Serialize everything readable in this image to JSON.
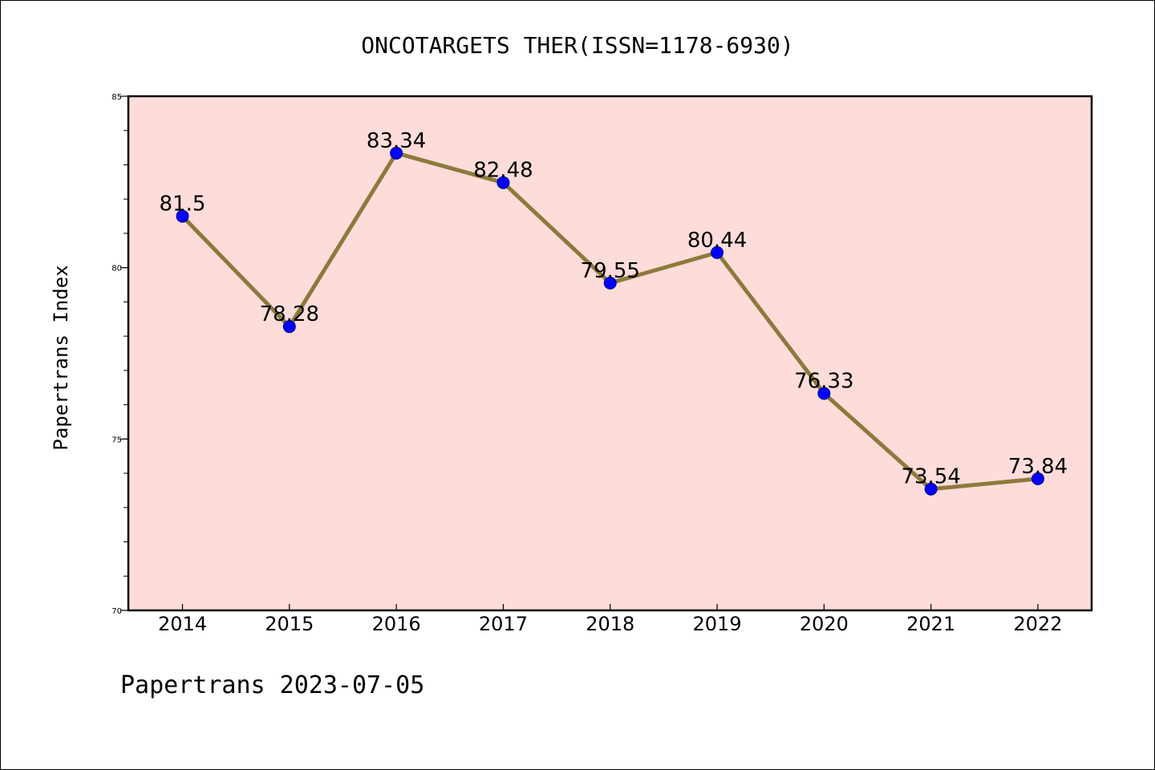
{
  "chart_data": {
    "type": "line",
    "title": "ONCOTARGETS THER(ISSN=1178-6930)",
    "ylabel": "Papertrans Index",
    "xlabel": "",
    "footer": "Papertrans 2023-07-05",
    "categories": [
      "2014",
      "2015",
      "2016",
      "2017",
      "2018",
      "2019",
      "2020",
      "2021",
      "2022"
    ],
    "series": [
      {
        "values": [
          81.5,
          78.28,
          83.34,
          82.48,
          79.55,
          80.44,
          76.33,
          73.54,
          73.84
        ],
        "labels": [
          "81.5",
          "78.28",
          "83.34",
          "82.48",
          "79.55",
          "80.44",
          "76.33",
          "73.54",
          "73.84"
        ]
      }
    ],
    "ylim": [
      70,
      85
    ],
    "yticks": [
      "70",
      "75",
      "80",
      "85"
    ],
    "grid": false,
    "legend": "none",
    "colors": {
      "plot_background": "#fddcd9",
      "line": "#8c7a3c",
      "marker": "#0000ff"
    }
  }
}
